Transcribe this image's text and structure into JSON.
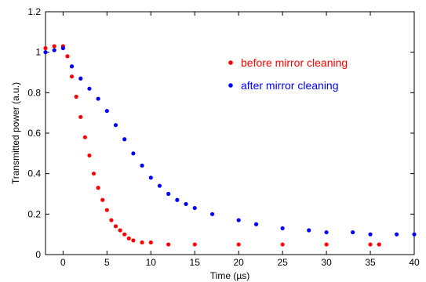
{
  "chart_data": {
    "type": "scatter",
    "xlabel": "Time (µs)",
    "ylabel": "Transmitted power (a.u.)",
    "xlim": [
      -2,
      40
    ],
    "ylim": [
      0,
      1.2
    ],
    "xticks": [
      0,
      5,
      10,
      15,
      20,
      25,
      30,
      35,
      40
    ],
    "yticks": [
      0,
      0.2,
      0.4,
      0.6,
      0.8,
      1,
      1.2
    ],
    "xtick_labels": [
      "0",
      "5",
      "10",
      "15",
      "20",
      "25",
      "30",
      "35",
      "40"
    ],
    "ytick_labels": [
      "0",
      "0.2",
      "0.4",
      "0.6",
      "0.8",
      "1",
      "1.2"
    ],
    "legend_position": "top-right",
    "grid": false,
    "series": [
      {
        "name": "before mirror cleaning",
        "color": "#ff0000",
        "x": [
          -2,
          -1,
          0,
          0.5,
          1,
          1.5,
          2,
          2.5,
          3,
          3.5,
          4,
          4.5,
          5,
          5.5,
          6,
          6.5,
          7,
          7.5,
          8,
          9,
          10,
          12,
          15,
          20,
          25,
          30,
          35,
          36
        ],
        "y": [
          1.02,
          1.03,
          1.03,
          0.98,
          0.88,
          0.78,
          0.68,
          0.58,
          0.49,
          0.4,
          0.33,
          0.27,
          0.22,
          0.17,
          0.14,
          0.12,
          0.1,
          0.08,
          0.07,
          0.06,
          0.06,
          0.05,
          0.05,
          0.05,
          0.05,
          0.05,
          0.05,
          0.05
        ]
      },
      {
        "name": "after mirror cleaning",
        "color": "#0000ff",
        "x": [
          -2,
          -1,
          0,
          1,
          2,
          3,
          4,
          5,
          6,
          7,
          8,
          9,
          10,
          11,
          12,
          13,
          14,
          15,
          17,
          20,
          22,
          25,
          28,
          30,
          33,
          35,
          38,
          40
        ],
        "y": [
          1.0,
          1.01,
          1.02,
          0.93,
          0.87,
          0.82,
          0.77,
          0.71,
          0.64,
          0.57,
          0.5,
          0.44,
          0.38,
          0.34,
          0.3,
          0.27,
          0.25,
          0.23,
          0.2,
          0.17,
          0.15,
          0.13,
          0.12,
          0.11,
          0.11,
          0.1,
          0.1,
          0.1
        ]
      }
    ]
  }
}
